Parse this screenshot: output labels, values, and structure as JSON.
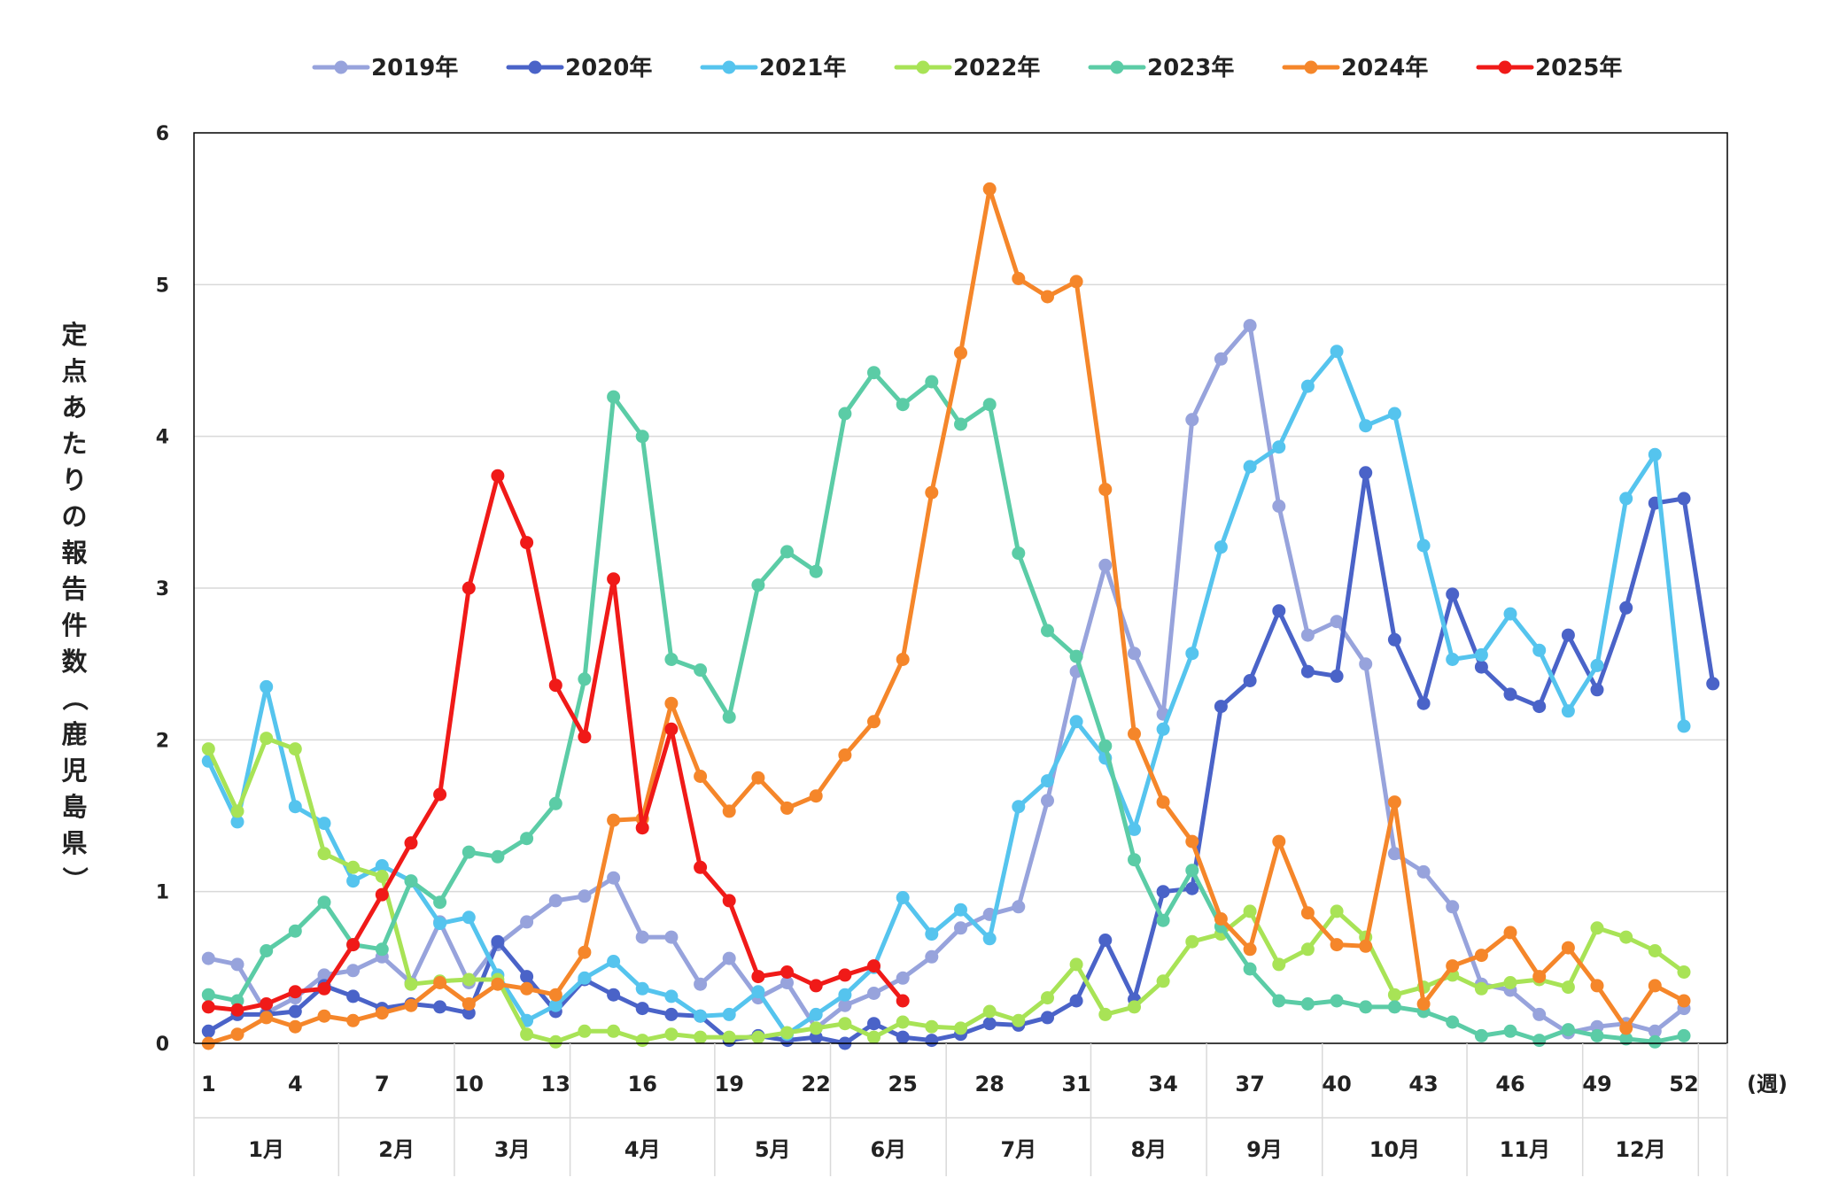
{
  "chart_data": {
    "type": "line",
    "ylabel": "定点あたりの報告件数（鹿児島県）",
    "x_unit_label": "(週)",
    "ylim": [
      0,
      6
    ],
    "yticks": [
      0,
      1,
      2,
      3,
      4,
      5,
      6
    ],
    "xlim": [
      1,
      53
    ],
    "xticks": [
      1,
      4,
      7,
      10,
      13,
      16,
      19,
      22,
      25,
      28,
      31,
      34,
      37,
      40,
      43,
      46,
      49,
      52
    ],
    "grid": "horizontal",
    "legend_position": "top",
    "months": [
      {
        "label": "1月",
        "start": 1,
        "end": 5
      },
      {
        "label": "2月",
        "start": 6,
        "end": 9
      },
      {
        "label": "3月",
        "start": 10,
        "end": 13
      },
      {
        "label": "4月",
        "start": 14,
        "end": 18
      },
      {
        "label": "5月",
        "start": 19,
        "end": 22
      },
      {
        "label": "6月",
        "start": 23,
        "end": 26
      },
      {
        "label": "7月",
        "start": 27,
        "end": 31
      },
      {
        "label": "8月",
        "start": 32,
        "end": 35
      },
      {
        "label": "9月",
        "start": 36,
        "end": 39
      },
      {
        "label": "10月",
        "start": 40,
        "end": 44
      },
      {
        "label": "11月",
        "start": 45,
        "end": 48
      },
      {
        "label": "12月",
        "start": 49,
        "end": 52
      }
    ],
    "series": [
      {
        "name": "2019年",
        "color": "#97a3dc",
        "start_week": 1,
        "values": [
          0.56,
          0.52,
          0.2,
          0.3,
          0.45,
          0.48,
          0.57,
          0.4,
          0.8,
          0.4,
          0.65,
          0.8,
          0.94,
          0.97,
          1.09,
          0.7,
          0.7,
          0.39,
          0.56,
          0.3,
          0.4,
          0.1,
          0.25,
          0.33,
          0.43,
          0.57,
          0.76,
          0.85,
          0.9,
          1.6,
          2.45,
          3.15,
          2.57,
          2.17,
          4.11,
          4.51,
          4.73,
          3.54,
          2.69,
          2.78,
          2.5,
          1.25,
          1.13,
          0.9,
          0.39,
          0.35,
          0.19,
          0.07,
          0.11,
          0.13,
          0.08,
          0.23
        ]
      },
      {
        "name": "2020年",
        "color": "#4a63c8",
        "start_week": 1,
        "values": [
          0.08,
          0.19,
          0.19,
          0.21,
          0.38,
          0.31,
          0.23,
          0.26,
          0.24,
          0.2,
          0.67,
          0.44,
          0.21,
          0.42,
          0.32,
          0.23,
          0.19,
          0.18,
          0.02,
          0.05,
          0.02,
          0.04,
          0.0,
          0.13,
          0.04,
          0.02,
          0.06,
          0.13,
          0.12,
          0.17,
          0.28,
          0.68,
          0.29,
          1.0,
          1.02,
          2.22,
          2.39,
          2.85,
          2.45,
          2.42,
          3.76,
          2.66,
          2.24,
          2.96,
          2.48,
          2.3,
          2.22,
          2.69,
          2.33,
          2.87,
          3.56,
          3.59,
          2.37
        ]
      },
      {
        "name": "2021年",
        "color": "#55c4ee",
        "start_week": 1,
        "values": [
          1.86,
          1.46,
          2.35,
          1.56,
          1.45,
          1.07,
          1.17,
          1.07,
          0.79,
          0.83,
          0.45,
          0.15,
          0.25,
          0.43,
          0.54,
          0.36,
          0.31,
          0.18,
          0.19,
          0.34,
          0.06,
          0.19,
          0.32,
          0.5,
          0.96,
          0.72,
          0.88,
          0.69,
          1.56,
          1.73,
          2.12,
          1.88,
          1.41,
          2.07,
          2.57,
          3.27,
          3.8,
          3.93,
          4.33,
          4.56,
          4.07,
          4.15,
          3.28,
          2.53,
          2.56,
          2.83,
          2.59,
          2.19,
          2.49,
          3.59,
          3.88,
          2.09
        ]
      },
      {
        "name": "2022年",
        "color": "#a8e356",
        "start_week": 1,
        "values": [
          1.94,
          1.53,
          2.01,
          1.94,
          1.25,
          1.16,
          1.1,
          0.39,
          0.41,
          0.42,
          0.42,
          0.06,
          0.01,
          0.08,
          0.08,
          0.02,
          0.06,
          0.04,
          0.04,
          0.04,
          0.07,
          0.1,
          0.13,
          0.04,
          0.14,
          0.11,
          0.1,
          0.21,
          0.15,
          0.3,
          0.52,
          0.19,
          0.24,
          0.41,
          0.67,
          0.72,
          0.87,
          0.52,
          0.62,
          0.87,
          0.7,
          0.32,
          0.37,
          0.45,
          0.36,
          0.4,
          0.42,
          0.37,
          0.76,
          0.7,
          0.61,
          0.47
        ]
      },
      {
        "name": "2023年",
        "color": "#5bcca6",
        "start_week": 1,
        "values": [
          0.32,
          0.28,
          0.61,
          0.74,
          0.93,
          0.65,
          0.62,
          1.07,
          0.93,
          1.26,
          1.23,
          1.35,
          1.58,
          2.4,
          4.26,
          4.0,
          2.53,
          2.46,
          2.15,
          3.02,
          3.24,
          3.11,
          4.15,
          4.42,
          4.21,
          4.36,
          4.08,
          4.21,
          3.23,
          2.72,
          2.55,
          1.96,
          1.21,
          0.81,
          1.14,
          0.77,
          0.49,
          0.28,
          0.26,
          0.28,
          0.24,
          0.24,
          0.21,
          0.14,
          0.05,
          0.08,
          0.02,
          0.09,
          0.05,
          0.03,
          0.01,
          0.05
        ]
      },
      {
        "name": "2024年",
        "color": "#f5862a",
        "start_week": 1,
        "values": [
          0.0,
          0.06,
          0.17,
          0.11,
          0.18,
          0.15,
          0.2,
          0.25,
          0.4,
          0.26,
          0.39,
          0.36,
          0.32,
          0.6,
          1.47,
          1.48,
          2.24,
          1.76,
          1.53,
          1.75,
          1.55,
          1.63,
          1.9,
          2.12,
          2.53,
          3.63,
          4.55,
          5.63,
          5.04,
          4.92,
          5.02,
          3.65,
          2.04,
          1.59,
          1.33,
          0.82,
          0.62,
          1.33,
          0.86,
          0.65,
          0.64,
          1.59,
          0.26,
          0.51,
          0.58,
          0.73,
          0.44,
          0.63,
          0.38,
          0.1,
          0.38,
          0.28
        ]
      },
      {
        "name": "2025年",
        "color": "#f01a18",
        "start_week": 1,
        "values": [
          0.24,
          0.22,
          0.26,
          0.34,
          0.36,
          0.65,
          0.98,
          1.32,
          1.64,
          3.0,
          3.74,
          3.3,
          2.36,
          2.02,
          3.06,
          1.42,
          2.07,
          1.16,
          0.94,
          0.44,
          0.47,
          0.38,
          0.45,
          0.51,
          0.28
        ]
      }
    ]
  }
}
